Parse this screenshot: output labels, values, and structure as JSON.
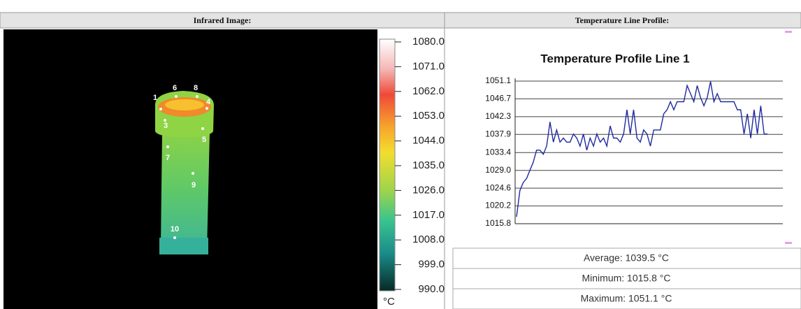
{
  "header": {
    "left": "Infrared Image:",
    "right": "Temperature Line Profile:"
  },
  "image": {
    "points": [
      "1",
      "6",
      "8",
      "4",
      "3",
      "5",
      "7",
      "9",
      "10"
    ]
  },
  "colorbar": {
    "unit": "°C",
    "ticks": [
      {
        "value": 1080,
        "label": "1080.0"
      },
      {
        "value": 1071,
        "label": "1071.0"
      },
      {
        "value": 1062,
        "label": "1062.0"
      },
      {
        "value": 1053,
        "label": "1053.0"
      },
      {
        "value": 1044,
        "label": "1044.0"
      },
      {
        "value": 1035,
        "label": "1035.0"
      },
      {
        "value": 1026,
        "label": "1026.0"
      },
      {
        "value": 1017,
        "label": "1017.0"
      },
      {
        "value": 1008,
        "label": "1008.0"
      },
      {
        "value": 999,
        "label": "999.0"
      },
      {
        "value": 990,
        "label": "990.0"
      }
    ]
  },
  "chart_data": {
    "type": "line",
    "title": "Temperature Profile Line 1",
    "color": "#1f2a9e",
    "grid": true,
    "values": [
      1017.5,
      1024,
      1026,
      1027,
      1029,
      1031,
      1034,
      1034,
      1033,
      1035,
      1041,
      1036,
      1039,
      1036,
      1037,
      1036,
      1036,
      1038,
      1037,
      1035,
      1038,
      1034,
      1037,
      1035,
      1038,
      1036,
      1037,
      1035,
      1040,
      1037,
      1037,
      1036,
      1038,
      1044,
      1038,
      1044,
      1037,
      1036,
      1039,
      1038,
      1035,
      1039,
      1039,
      1039,
      1043,
      1044,
      1046,
      1044,
      1046,
      1046,
      1046,
      1050,
      1048,
      1046,
      1050,
      1047,
      1045,
      1047,
      1051,
      1046,
      1048,
      1046,
      1046,
      1046,
      1046,
      1046,
      1044,
      1044,
      1038,
      1043,
      1037,
      1044,
      1038,
      1045,
      1038,
      1038
    ],
    "ylim": [
      1015.8,
      1051.1
    ],
    "yticks": [
      1051.1,
      1046.7,
      1042.3,
      1037.9,
      1033.4,
      {
        "value": 1029,
        "label": "1029.0"
      },
      1024.6,
      1020.2,
      1015.8
    ]
  },
  "stats": [
    "Average: 1039.5 °C",
    "Minimum: 1015.8 °C",
    "Maximum: 1051.1 °C"
  ]
}
